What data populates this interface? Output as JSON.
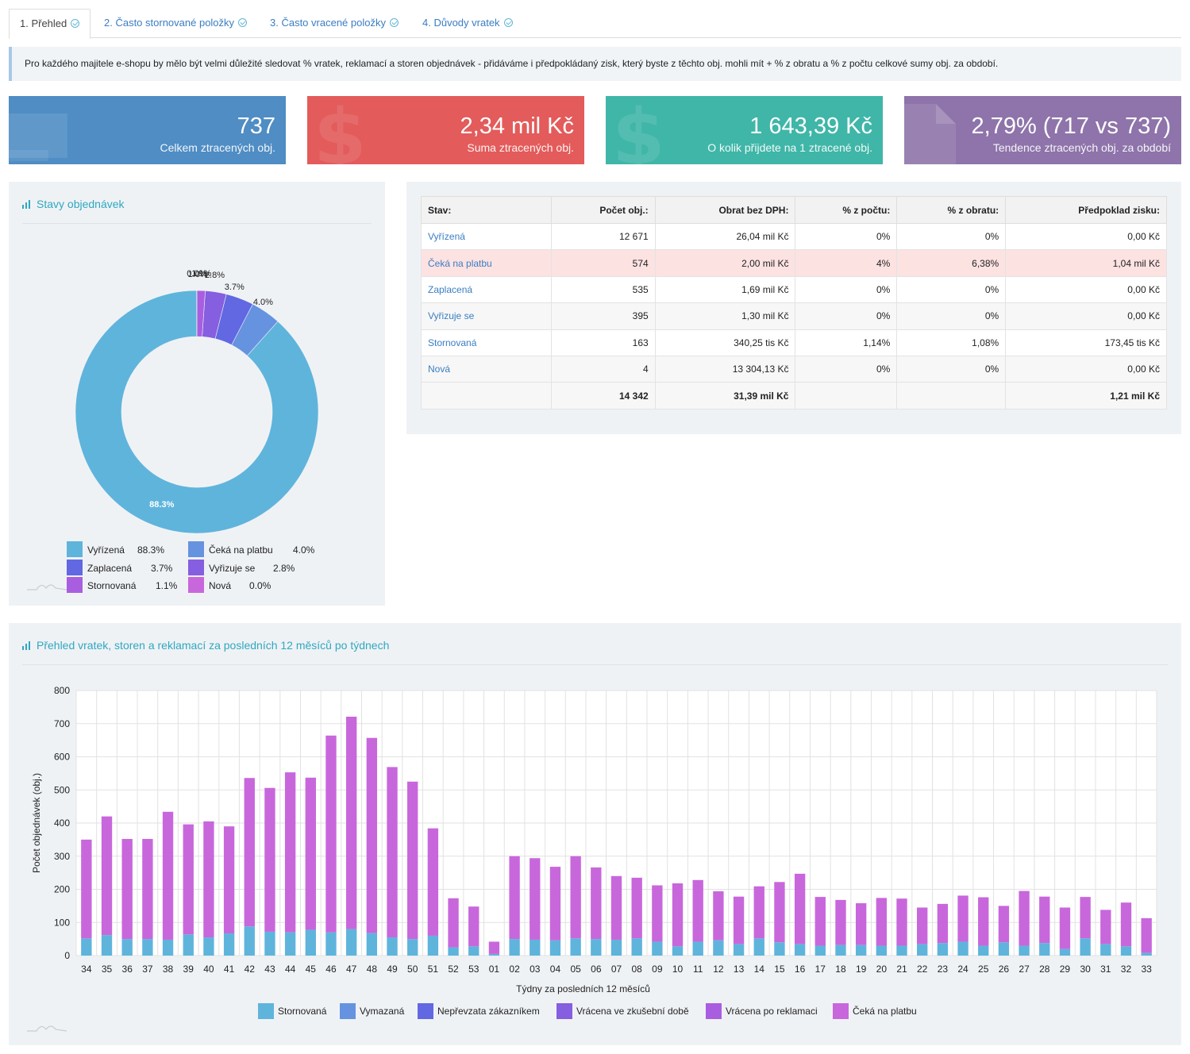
{
  "tabs": [
    {
      "label": "1. Přehled",
      "active": true
    },
    {
      "label": "2. Často stornované položky",
      "active": false
    },
    {
      "label": "3. Často vracené položky",
      "active": false
    },
    {
      "label": "4. Důvody vratek",
      "active": false
    }
  ],
  "info_text": "Pro každého majitele e-shopu by mělo být velmi důležité sledovat % vratek, reklamací a storen objednávek - přidáváme i předpokládaný zisk, který byste z těchto obj. mohli mít + % z obratu a % z počtu celkové sumy obj. za období.",
  "cards": [
    {
      "value": "737",
      "label": "Celkem ztracených obj.",
      "color": "#4f8dc4",
      "icon": "monitor-icon"
    },
    {
      "value": "2,34 mil Kč",
      "label": "Suma ztracených obj.",
      "color": "#e35b5b",
      "icon": "dollar-icon"
    },
    {
      "value": "1 643,39 Kč",
      "label": "O kolik přijdete na 1 ztracené obj.",
      "color": "#3fb6a8",
      "icon": "dollar-icon"
    },
    {
      "value": "2,79% (717 vs 737)",
      "label": "Tendence ztracených obj. za období",
      "color": "#8e74aa",
      "icon": "document-icon"
    }
  ],
  "donut_panel": {
    "title": "Stavy objednávek",
    "slices": [
      {
        "name": "Vyřízená",
        "pct": 88.3,
        "label": "88.3%",
        "color": "#5fb4dc"
      },
      {
        "name": "Čeká na platbu",
        "pct": 4.0,
        "label": "4.0%",
        "color": "#6693e0"
      },
      {
        "name": "Zaplacená",
        "pct": 3.7,
        "label": "3.7%",
        "color": "#6168e2"
      },
      {
        "name": "Vyřizuje se",
        "pct": 2.8,
        "label": "2.8%",
        "color": "#865ee0"
      },
      {
        "name": "Stornovaná",
        "pct": 1.1,
        "label": "1.1%",
        "color": "#a95ee0"
      },
      {
        "name": "Nová",
        "pct": 0.0,
        "label": "0.0%",
        "color": "#c867dc"
      }
    ],
    "overlap_label": "1.0%"
  },
  "table": {
    "headers": [
      "Stav:",
      "Počet obj.:",
      "Obrat bez DPH:",
      "% z počtu:",
      "% z obratu:",
      "Předpoklad zisku:"
    ],
    "rows": [
      [
        "Vyřízená",
        "12 671",
        "26,04 mil Kč",
        "0%",
        "0%",
        "0,00 Kč"
      ],
      [
        "Čeká na platbu",
        "574",
        "2,00 mil Kč",
        "4%",
        "6,38%",
        "1,04 mil Kč"
      ],
      [
        "Zaplacená",
        "535",
        "1,69 mil Kč",
        "0%",
        "0%",
        "0,00 Kč"
      ],
      [
        "Vyřizuje se",
        "395",
        "1,30 mil Kč",
        "0%",
        "0%",
        "0,00 Kč"
      ],
      [
        "Stornovaná",
        "163",
        "340,25 tis Kč",
        "1,14%",
        "1,08%",
        "173,45 tis Kč"
      ],
      [
        "Nová",
        "4",
        "13 304,13 Kč",
        "0%",
        "0%",
        "0,00 Kč"
      ]
    ],
    "total": [
      "",
      "14 342",
      "31,39 mil Kč",
      "",
      "",
      "1,21 mil Kč"
    ]
  },
  "bar_panel": {
    "title": "Přehled vratek, storen a reklamací za posledních 12 měsíců po týdnech"
  },
  "chart_data": {
    "type": "bar",
    "stacked": true,
    "xlabel": "Týdny za posledních 12 měsíců",
    "ylabel": "Počet objednávek (obj.)",
    "ylim": [
      0,
      800
    ],
    "yticks": [
      0,
      100,
      200,
      300,
      400,
      500,
      600,
      700,
      800
    ],
    "categories": [
      "34",
      "35",
      "36",
      "37",
      "38",
      "39",
      "40",
      "41",
      "42",
      "43",
      "44",
      "45",
      "46",
      "47",
      "48",
      "49",
      "50",
      "51",
      "52",
      "53",
      "01",
      "02",
      "03",
      "04",
      "05",
      "06",
      "07",
      "08",
      "09",
      "10",
      "11",
      "12",
      "13",
      "14",
      "15",
      "16",
      "17",
      "18",
      "19",
      "20",
      "21",
      "22",
      "23",
      "24",
      "25",
      "26",
      "27",
      "28",
      "29",
      "30",
      "31",
      "32",
      "33"
    ],
    "series": [
      {
        "name": "Stornovaná",
        "color": "#5fb4dc",
        "values": [
          52,
          62,
          50,
          50,
          48,
          64,
          55,
          67,
          88,
          72,
          70,
          78,
          70,
          80,
          68,
          55,
          50,
          60,
          25,
          28,
          5,
          50,
          48,
          46,
          52,
          50,
          48,
          52,
          42,
          28,
          42,
          46,
          35,
          52,
          40,
          35,
          30,
          32,
          32,
          30,
          30,
          35,
          38,
          42,
          30,
          40,
          30,
          38,
          20,
          52,
          35,
          28,
          8
        ]
      },
      {
        "name": "Vymazaná",
        "color": "#6693e0",
        "values": [
          0,
          0,
          0,
          0,
          0,
          0,
          0,
          0,
          0,
          0,
          0,
          0,
          0,
          0,
          0,
          0,
          0,
          0,
          0,
          0,
          0,
          0,
          0,
          0,
          0,
          0,
          0,
          0,
          0,
          0,
          0,
          0,
          0,
          0,
          0,
          0,
          0,
          0,
          0,
          0,
          0,
          0,
          0,
          0,
          0,
          0,
          0,
          0,
          0,
          0,
          0,
          0,
          0
        ]
      },
      {
        "name": "Nepřevzata zákazníkem",
        "color": "#6168e2",
        "values": [
          0,
          0,
          0,
          0,
          0,
          0,
          0,
          0,
          0,
          0,
          0,
          0,
          0,
          0,
          0,
          0,
          0,
          0,
          0,
          0,
          0,
          0,
          0,
          0,
          0,
          0,
          0,
          0,
          0,
          0,
          0,
          0,
          0,
          0,
          0,
          0,
          0,
          0,
          0,
          0,
          0,
          0,
          0,
          0,
          0,
          0,
          0,
          0,
          0,
          0,
          0,
          0,
          0
        ]
      },
      {
        "name": "Vrácena ve zkušební době",
        "color": "#865ee0",
        "values": [
          0,
          0,
          0,
          0,
          0,
          0,
          0,
          0,
          0,
          0,
          0,
          0,
          0,
          0,
          0,
          0,
          0,
          0,
          0,
          0,
          0,
          0,
          0,
          0,
          0,
          0,
          0,
          0,
          0,
          0,
          0,
          0,
          0,
          0,
          0,
          0,
          0,
          0,
          0,
          0,
          0,
          0,
          0,
          0,
          0,
          0,
          0,
          0,
          0,
          0,
          0,
          0,
          0
        ]
      },
      {
        "name": "Vrácena po reklamaci",
        "color": "#a95ee0",
        "values": [
          0,
          0,
          0,
          0,
          0,
          0,
          0,
          0,
          0,
          0,
          0,
          0,
          0,
          0,
          0,
          0,
          0,
          0,
          0,
          0,
          0,
          0,
          0,
          0,
          0,
          0,
          0,
          0,
          0,
          0,
          0,
          0,
          0,
          0,
          0,
          0,
          0,
          0,
          0,
          0,
          0,
          0,
          0,
          0,
          0,
          0,
          0,
          0,
          0,
          0,
          0,
          0,
          0
        ]
      },
      {
        "name": "Čeká na platbu",
        "color": "#c867dc",
        "values": [
          298,
          358,
          302,
          302,
          386,
          332,
          350,
          323,
          448,
          434,
          483,
          459,
          594,
          641,
          589,
          514,
          475,
          324,
          148,
          120,
          37,
          250,
          246,
          222,
          248,
          216,
          192,
          183,
          170,
          190,
          186,
          148,
          143,
          157,
          182,
          212,
          147,
          136,
          126,
          144,
          142,
          110,
          118,
          139,
          146,
          110,
          165,
          140,
          125,
          125,
          103,
          132,
          105
        ]
      }
    ]
  }
}
